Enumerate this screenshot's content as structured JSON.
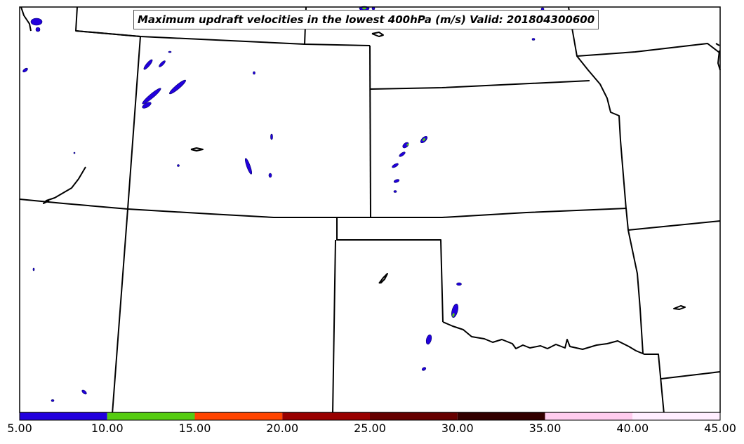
{
  "title": "Maximum updraft velocities in the lowest 400hPa (m/s) Valid: 201804300600",
  "colorbar": {
    "bins": [
      {
        "from": 5.0,
        "to": 10.0,
        "color": "#2200dd"
      },
      {
        "from": 10.0,
        "to": 15.0,
        "color": "#55cc11"
      },
      {
        "from": 15.0,
        "to": 20.0,
        "color": "#ff4400"
      },
      {
        "from": 20.0,
        "to": 25.0,
        "color": "#990000"
      },
      {
        "from": 25.0,
        "to": 30.0,
        "color": "#660000"
      },
      {
        "from": 30.0,
        "to": 35.0,
        "color": "#330000"
      },
      {
        "from": 35.0,
        "to": 40.0,
        "color": "#ffccee"
      },
      {
        "from": 40.0,
        "to": 45.0,
        "color": "#ffeeff"
      }
    ],
    "tick_labels": [
      "5.00",
      "10.00",
      "15.00",
      "20.00",
      "25.00",
      "30.00",
      "35.00",
      "40.00",
      "45.00"
    ]
  },
  "colors": {
    "boundary": "#000000",
    "updraft_fill": "#2200dd",
    "updraft_strong": "#55cc11"
  }
}
